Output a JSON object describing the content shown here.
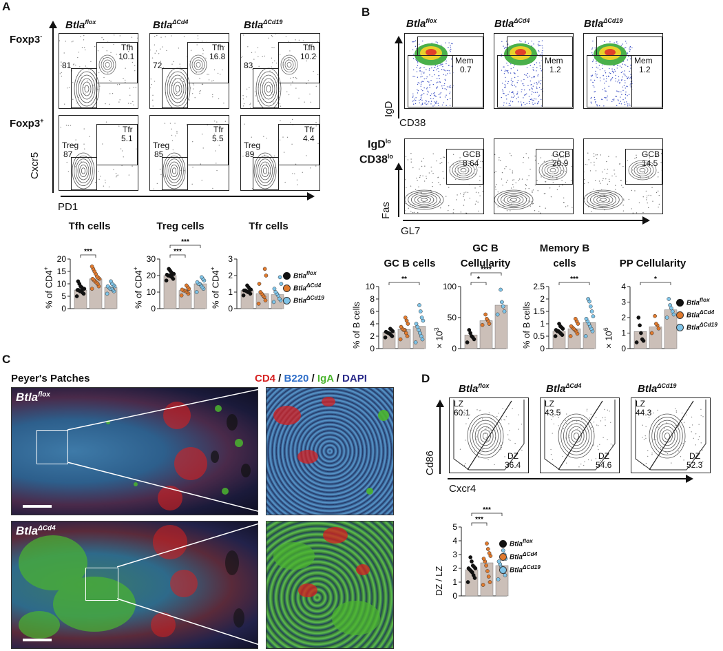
{
  "panels": {
    "a": "A",
    "b": "B",
    "c": "C",
    "d": "D"
  },
  "genotypes": {
    "flox": "Btla",
    "flox_sup": "flox",
    "cd4": "Btla",
    "cd4_sup": "ΔCd4",
    "cd19": "Btla",
    "cd19_sup": "ΔCd19"
  },
  "panel_a": {
    "row1_label": "Foxp3",
    "row1_sup": "-",
    "row2_label": "Foxp3",
    "row2_sup": "+",
    "y_axis": "Cxcr5",
    "x_axis": "PD1",
    "row1_gates": [
      {
        "left_val": "81",
        "gate": "Tfh",
        "val": "10.1"
      },
      {
        "left_val": "72",
        "gate": "Tfh",
        "val": "16.8"
      },
      {
        "left_val": "83",
        "gate": "Tfh",
        "val": "10.2"
      }
    ],
    "row2_gates": [
      {
        "left_gate": "Treg",
        "left_val": "87",
        "gate": "Tfr",
        "val": "5.1"
      },
      {
        "left_gate": "Treg",
        "left_val": "85",
        "gate": "Tfr",
        "val": "5.5"
      },
      {
        "left_gate": "Treg",
        "left_val": "89",
        "gate": "Tfr",
        "val": "4.4"
      }
    ]
  },
  "panel_b": {
    "row1_y": "IgD",
    "row1_x": "CD38",
    "row2_label1": "IgD",
    "row2_label1_sup": "lo",
    "row2_label2": "CD38",
    "row2_label2_sup": "lo",
    "row2_y": "Fas",
    "row2_x": "GL7",
    "row1_gates": [
      {
        "gate": "Mem",
        "val": "0.7"
      },
      {
        "gate": "Mem",
        "val": "1.2"
      },
      {
        "gate": "Mem",
        "val": "1.2"
      }
    ],
    "row2_gates": [
      {
        "gate": "GCB",
        "val": "8.64"
      },
      {
        "gate": "GCB",
        "val": "20.9"
      },
      {
        "gate": "GCB",
        "val": "14.5"
      }
    ]
  },
  "panel_c": {
    "title": "Peyer's Patches",
    "stain": {
      "cd4": "CD4",
      "sep1": " / ",
      "b220": "B220",
      "sep2": " / ",
      "iga": "IgA",
      "sep3": " / ",
      "dapi": "DAPI"
    },
    "colors": {
      "cd4": "#d62020",
      "b220": "#2f6fc9",
      "iga": "#4bb52f",
      "dapi": "#2a2a8a"
    }
  },
  "panel_d": {
    "y_axis": "Cd86",
    "x_axis": "Cxcr4",
    "gates": [
      {
        "lz": "LZ",
        "lz_val": "60.1",
        "dz": "DZ",
        "dz_val": "36.4"
      },
      {
        "lz": "LZ",
        "lz_val": "43.5",
        "dz": "DZ",
        "dz_val": "54.6"
      },
      {
        "lz": "LZ",
        "lz_val": "44.3",
        "dz": "DZ",
        "dz_val": "52.3"
      }
    ]
  },
  "colors": {
    "flox": "#111111",
    "cd4": "#e07a2e",
    "cd19": "#7fc4e8",
    "bar": "#cbbfb8"
  },
  "chart_data": [
    {
      "id": "tfh",
      "type": "bar",
      "title": "Tfh cells",
      "ylabel": "% of CD4",
      "ylabel_sup": "+",
      "ylim": [
        0,
        20
      ],
      "yticks": [
        0,
        5,
        10,
        15,
        20
      ],
      "categories": [
        "Btla flox",
        "Btla ΔCd4",
        "Btla ΔCd19"
      ],
      "values": [
        7.5,
        12,
        8.5
      ],
      "points": [
        [
          5,
          6,
          6.5,
          7,
          7,
          7.5,
          7.5,
          8,
          8,
          8.5,
          9,
          10,
          11
        ],
        [
          8,
          9,
          10,
          10.5,
          11,
          11.5,
          12,
          12,
          12.5,
          13,
          14,
          15,
          16,
          17
        ],
        [
          6,
          7,
          7.5,
          8,
          8,
          8.5,
          9,
          9,
          9.5,
          10,
          11
        ]
      ],
      "sig": [
        {
          "from": 0,
          "to": 1,
          "label": "***",
          "level": 0
        }
      ]
    },
    {
      "id": "treg",
      "type": "bar",
      "title": "Treg cells",
      "ylabel": "% of CD4",
      "ylabel_sup": "+",
      "ylim": [
        0,
        30
      ],
      "yticks": [
        0,
        10,
        20,
        30
      ],
      "categories": [
        "Btla flox",
        "Btla ΔCd4",
        "Btla ΔCd19"
      ],
      "values": [
        20,
        11,
        15
      ],
      "points": [
        [
          17,
          18,
          19,
          19.5,
          20,
          20,
          20.5,
          21,
          21,
          22,
          23,
          24
        ],
        [
          8,
          9,
          10,
          10.5,
          11,
          11,
          11.5,
          12,
          13,
          14
        ],
        [
          10,
          12,
          13,
          14,
          15,
          15,
          16,
          17,
          18,
          19
        ]
      ],
      "sig": [
        {
          "from": 0,
          "to": 1,
          "label": "***",
          "level": 0
        },
        {
          "from": 0,
          "to": 2,
          "label": "***",
          "level": 1
        }
      ]
    },
    {
      "id": "tfr",
      "type": "bar",
      "title": "Tfr cells",
      "ylabel": "% of CD4",
      "ylabel_sup": "+",
      "ylim": [
        0,
        3
      ],
      "yticks": [
        0,
        1,
        2,
        3
      ],
      "categories": [
        "Btla flox",
        "Btla ΔCd4",
        "Btla ΔCd19"
      ],
      "values": [
        1.1,
        0.9,
        0.85
      ],
      "points": [
        [
          0.8,
          0.9,
          1,
          1,
          1.05,
          1.1,
          1.1,
          1.15,
          1.2,
          1.3,
          1.4
        ],
        [
          0.3,
          0.5,
          0.7,
          0.8,
          0.9,
          1,
          1.5,
          2,
          2.4
        ],
        [
          0.4,
          0.5,
          0.6,
          0.8,
          0.9,
          1,
          1.2,
          1.5,
          1.9
        ]
      ],
      "sig": []
    },
    {
      "id": "gcb",
      "type": "bar",
      "title": "GC B cells",
      "ylabel": "% of B cells",
      "ylim": [
        0,
        10
      ],
      "yticks": [
        0,
        2,
        4,
        6,
        8,
        10
      ],
      "categories": [
        "Btla flox",
        "Btla ΔCd4",
        "Btla ΔCd19"
      ],
      "values": [
        2.6,
        3.1,
        3.6
      ],
      "points": [
        [
          1.8,
          2,
          2.2,
          2.4,
          2.5,
          2.6,
          2.7,
          2.8,
          3,
          3.2
        ],
        [
          1.5,
          2,
          2.5,
          3,
          3,
          3.2,
          3.5,
          4,
          4.5,
          5
        ],
        [
          1,
          1.5,
          2,
          2.5,
          3,
          3.5,
          4,
          4.5,
          5,
          6,
          7
        ]
      ],
      "sig": [
        {
          "from": 0,
          "to": 2,
          "label": "**",
          "level": 0
        }
      ]
    },
    {
      "id": "gcb_cell",
      "type": "bar",
      "title": "GC B Cellularity",
      "ylabel": "× 10",
      "ylabel_sup": "3",
      "ylim": [
        0,
        100
      ],
      "yticks": [
        0,
        50,
        100
      ],
      "categories": [
        "Btla flox",
        "Btla ΔCd4",
        "Btla ΔCd19"
      ],
      "values": [
        22,
        45,
        70
      ],
      "points": [
        [
          10,
          15,
          18,
          20,
          25,
          30
        ],
        [
          38,
          40,
          45,
          48,
          55
        ],
        [
          55,
          60,
          68,
          75,
          95
        ]
      ],
      "sig": [
        {
          "from": 0,
          "to": 1,
          "label": "*",
          "level": 0
        },
        {
          "from": 0,
          "to": 2,
          "label": "****",
          "level": 1
        }
      ]
    },
    {
      "id": "mem",
      "type": "bar",
      "title": "Memory B cells",
      "ylabel": "% of B cells",
      "ylim": [
        0,
        2.5
      ],
      "yticks": [
        0.0,
        0.5,
        1.0,
        1.5,
        2.0,
        2.5
      ],
      "categories": [
        "Btla flox",
        "Btla ΔCd4",
        "Btla ΔCd19"
      ],
      "values": [
        0.7,
        0.8,
        1.05
      ],
      "points": [
        [
          0.5,
          0.55,
          0.6,
          0.65,
          0.7,
          0.7,
          0.75,
          0.8,
          0.85,
          0.9,
          1
        ],
        [
          0.5,
          0.6,
          0.7,
          0.75,
          0.8,
          0.85,
          0.9,
          1,
          1.1,
          1.2
        ],
        [
          0.5,
          0.7,
          0.8,
          0.9,
          1,
          1.1,
          1.2,
          1.3,
          1.5,
          1.7,
          1.9,
          2
        ]
      ],
      "sig": [
        {
          "from": 0,
          "to": 2,
          "label": "***",
          "level": 0
        }
      ]
    },
    {
      "id": "pp",
      "type": "bar",
      "title": "PP Cellularity",
      "ylabel": "× 10",
      "ylabel_sup": "6",
      "ylim": [
        0,
        4
      ],
      "yticks": [
        0,
        1,
        2,
        3,
        4
      ],
      "categories": [
        "Btla flox",
        "Btla ΔCd4",
        "Btla ΔCd19"
      ],
      "values": [
        1.1,
        1.4,
        2.5
      ],
      "points": [
        [
          0.4,
          0.5,
          0.6,
          1,
          1.5,
          2
        ],
        [
          1,
          1.3,
          1.5,
          1.6,
          2.1
        ],
        [
          2,
          2.2,
          2.4,
          2.6,
          2.8,
          3.2
        ]
      ],
      "sig": [
        {
          "from": 0,
          "to": 2,
          "label": "*",
          "level": 0
        }
      ]
    },
    {
      "id": "dzlz",
      "type": "bar",
      "title": "",
      "ylabel": "DZ / LZ",
      "ylim": [
        0,
        5
      ],
      "yticks": [
        0,
        1,
        2,
        3,
        4,
        5
      ],
      "categories": [
        "Btla flox",
        "Btla ΔCd4",
        "Btla ΔCd19"
      ],
      "values": [
        1.9,
        2.4,
        2.2
      ],
      "points": [
        [
          1,
          1.3,
          1.5,
          1.7,
          1.8,
          1.9,
          2,
          2,
          2.1,
          2.2,
          2.5,
          2.8
        ],
        [
          0.8,
          1,
          1.4,
          1.8,
          2.2,
          2.5,
          2.7,
          2.9,
          3.1,
          3.4,
          3.8
        ],
        [
          1.2,
          1.5,
          1.8,
          2,
          2.1,
          2.3,
          2.5,
          2.7,
          3,
          3.3
        ]
      ],
      "sig": [
        {
          "from": 0,
          "to": 1,
          "label": "***",
          "level": 0
        },
        {
          "from": 0,
          "to": 2,
          "label": "***",
          "level": 1
        }
      ]
    }
  ]
}
